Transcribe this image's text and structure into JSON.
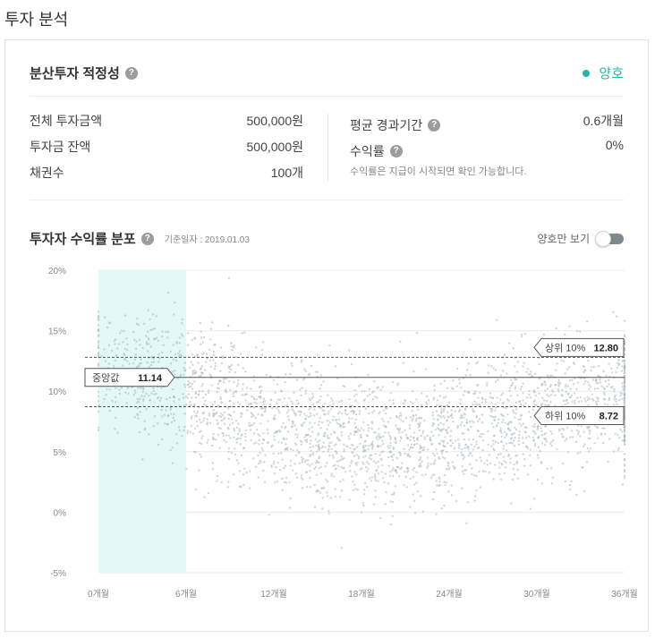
{
  "page_title": "투자 분석",
  "suitability": {
    "title": "분산투자 적정성",
    "status": "양호",
    "status_color": "#20b8a6"
  },
  "stats_left": [
    {
      "label": "전체 투자금액",
      "value": "500,000원"
    },
    {
      "label": "투자금 잔액",
      "value": "500,000원"
    },
    {
      "label": "채권수",
      "value": "100개"
    }
  ],
  "stats_right": [
    {
      "label": "평균 경과기간",
      "value": "0.6개월"
    },
    {
      "label": "수익률",
      "value": "0%"
    }
  ],
  "return_note": "수익률은 지급이 시작되면 확인 가능합니다.",
  "distribution": {
    "title": "투자자 수익률 분포",
    "base_date": "기준일자 : 2019.01.03",
    "toggle_label": "양호만 보기",
    "toggle_on": true
  },
  "chart_data": {
    "type": "scatter",
    "x_unit": "months",
    "y_unit": "%",
    "xlim": [
      0,
      36
    ],
    "ylim": [
      -5,
      20
    ],
    "x_ticks": [
      {
        "value": 0,
        "label": "0개월"
      },
      {
        "value": 6,
        "label": "6개월"
      },
      {
        "value": 12,
        "label": "12개월"
      },
      {
        "value": 18,
        "label": "18개월"
      },
      {
        "value": 24,
        "label": "24개월"
      },
      {
        "value": 30,
        "label": "30개월"
      },
      {
        "value": 36,
        "label": "36개월"
      }
    ],
    "y_ticks": [
      {
        "value": 20,
        "label": "20%"
      },
      {
        "value": 15,
        "label": "15%"
      },
      {
        "value": 10,
        "label": "10%"
      },
      {
        "value": 5,
        "label": "5%"
      },
      {
        "value": 0,
        "label": "0%"
      },
      {
        "value": -5,
        "label": "-5%"
      }
    ],
    "highlight_range": [
      0,
      6
    ],
    "highlight_color": "#e3f8f7",
    "point_color": "#a9b6bb",
    "grid": true,
    "median": {
      "label": "중앙값",
      "value": 11.14,
      "display": "11.14"
    },
    "top10": {
      "label": "상위 10%",
      "value": 12.8,
      "display": "12.80"
    },
    "bottom10": {
      "label": "하위 10%",
      "value": 8.72,
      "display": "8.72"
    },
    "density_centers": [
      {
        "x": 2.5,
        "y": 12.0
      },
      {
        "x": 6,
        "y": 10.5
      },
      {
        "x": 9,
        "y": 8.5
      },
      {
        "x": 12,
        "y": 7.0
      },
      {
        "x": 15,
        "y": 6.0
      },
      {
        "x": 18,
        "y": 5.5
      },
      {
        "x": 21,
        "y": 5.5
      },
      {
        "x": 24,
        "y": 6.0
      },
      {
        "x": 27,
        "y": 7.0
      },
      {
        "x": 30,
        "y": 8.0
      },
      {
        "x": 33,
        "y": 9.0
      },
      {
        "x": 36,
        "y": 9.5
      }
    ]
  }
}
